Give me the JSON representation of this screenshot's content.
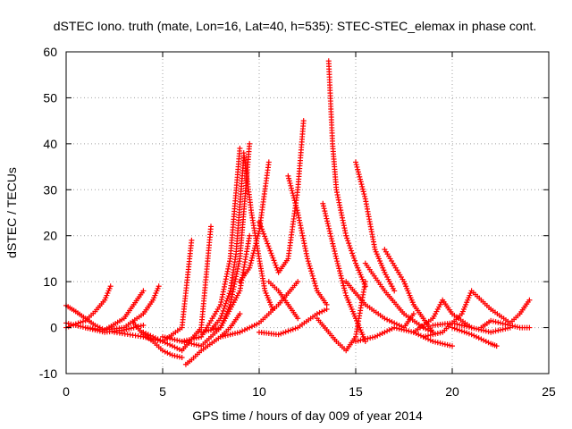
{
  "chart_data": {
    "type": "scatter",
    "title": "dSTEC Iono. truth (mate, Lon=16, Lat=40, h=535): STEC-STEC_elemax in phase cont.",
    "xlabel": "GPS time / hours of day 009 of year 2014",
    "ylabel": "dSTEC  / TECUs",
    "xlim": [
      0,
      25
    ],
    "ylim": [
      -10,
      60
    ],
    "xticks": [
      0,
      5,
      10,
      15,
      20,
      25
    ],
    "yticks": [
      -10,
      0,
      10,
      20,
      30,
      40,
      50,
      60
    ],
    "grid": true,
    "marker": "+",
    "colors": {
      "series": "#ff0000",
      "grid": "#a0a0a0",
      "axis": "#000000"
    },
    "arcs": [
      {
        "x": [
          0.0,
          0.5,
          1.0,
          1.5,
          2.0,
          2.3
        ],
        "y": [
          0.0,
          0.8,
          1.5,
          3.5,
          6.0,
          9.0
        ]
      },
      {
        "x": [
          0.0,
          0.5,
          1.0,
          1.5,
          2.0
        ],
        "y": [
          4.8,
          3.5,
          2.0,
          0.5,
          -0.5
        ]
      },
      {
        "x": [
          0.0,
          1.0,
          2.0,
          3.0,
          4.0
        ],
        "y": [
          1.0,
          0.0,
          -1.0,
          -0.5,
          0.5
        ]
      },
      {
        "x": [
          1.0,
          2.0,
          3.0,
          3.5,
          4.0
        ],
        "y": [
          0.0,
          -0.5,
          2.0,
          5.0,
          8.0
        ]
      },
      {
        "x": [
          2.0,
          3.0,
          4.0,
          4.5,
          4.8
        ],
        "y": [
          -0.5,
          0.0,
          3.0,
          6.0,
          9.0
        ]
      },
      {
        "x": [
          3.5,
          4.0,
          4.5,
          5.0,
          5.5,
          6.0
        ],
        "y": [
          1.0,
          -1.5,
          -3.0,
          -5.0,
          -6.0,
          -6.5
        ]
      },
      {
        "x": [
          2.5,
          4.0,
          5.0,
          6.0,
          6.5
        ],
        "y": [
          -1.0,
          -2.0,
          -3.0,
          0.0,
          19.0
        ]
      },
      {
        "x": [
          4.0,
          5.0,
          6.0,
          7.0,
          7.5
        ],
        "y": [
          -1.0,
          -3.0,
          -5.0,
          0.0,
          22.0
        ]
      },
      {
        "x": [
          6.2,
          6.5,
          7.0,
          8.0,
          8.5,
          9.0
        ],
        "y": [
          -8.0,
          -7.0,
          -5.0,
          -2.0,
          0.0,
          3.0
        ]
      },
      {
        "x": [
          5.0,
          6.0,
          7.0,
          8.0,
          9.0,
          9.5
        ],
        "y": [
          -2.0,
          -3.0,
          -4.0,
          0.0,
          8.0,
          20.0
        ]
      },
      {
        "x": [
          6.0,
          7.0,
          8.0,
          8.5,
          9.0
        ],
        "y": [
          -3.0,
          -2.0,
          5.0,
          15.0,
          39.0
        ]
      },
      {
        "x": [
          7.0,
          8.0,
          8.5,
          9.0,
          9.5
        ],
        "y": [
          -1.0,
          0.0,
          5.0,
          15.0,
          40.0
        ]
      },
      {
        "x": [
          7.5,
          8.0,
          8.5,
          8.8,
          9.2
        ],
        "y": [
          -0.5,
          2.0,
          8.0,
          16.0,
          37.0
        ]
      },
      {
        "x": [
          9.2,
          9.6,
          10.0,
          10.3,
          10.7
        ],
        "y": [
          38.0,
          25.0,
          15.0,
          8.0,
          4.0
        ]
      },
      {
        "x": [
          9.0,
          9.5,
          10.0,
          10.5
        ],
        "y": [
          10.0,
          13.0,
          21.0,
          36.0
        ]
      },
      {
        "x": [
          8.0,
          9.0,
          10.0,
          11.0,
          12.0
        ],
        "y": [
          -2.0,
          -1.0,
          1.0,
          5.0,
          10.0
        ]
      },
      {
        "x": [
          10.5,
          11.0,
          11.5,
          12.0
        ],
        "y": [
          10.0,
          8.0,
          5.0,
          2.0
        ]
      },
      {
        "x": [
          10.0,
          11.0,
          11.5,
          12.0,
          12.3
        ],
        "y": [
          23.0,
          12.0,
          15.0,
          30.0,
          45.0
        ]
      },
      {
        "x": [
          11.5,
          12.0,
          12.5,
          13.0,
          13.5
        ],
        "y": [
          33.0,
          25.0,
          15.0,
          8.0,
          5.0
        ]
      },
      {
        "x": [
          10.0,
          11.0,
          12.0,
          13.0,
          13.5
        ],
        "y": [
          -1.0,
          -1.5,
          0.0,
          3.0,
          4.0
        ]
      },
      {
        "x": [
          13.6,
          13.8,
          14.0,
          14.5,
          15.0,
          15.5
        ],
        "y": [
          58.0,
          40.0,
          30.0,
          20.0,
          14.0,
          9.0
        ]
      },
      {
        "x": [
          13.3,
          14.0,
          14.5,
          15.0,
          15.5
        ],
        "y": [
          27.0,
          15.0,
          7.0,
          2.0,
          -3.0
        ]
      },
      {
        "x": [
          13.0,
          14.0,
          14.5,
          15.0,
          15.5
        ],
        "y": [
          2.0,
          -3.0,
          -5.0,
          -2.0,
          10.0
        ]
      },
      {
        "x": [
          15.0,
          15.5,
          16.0,
          16.5,
          17.0
        ],
        "y": [
          36.0,
          28.0,
          17.0,
          12.0,
          8.0
        ]
      },
      {
        "x": [
          15.5,
          16.5,
          17.5,
          18.5,
          19.0
        ],
        "y": [
          14.0,
          8.0,
          3.0,
          0.0,
          -1.0
        ]
      },
      {
        "x": [
          16.5,
          17.5,
          18.0,
          18.5,
          19.0
        ],
        "y": [
          17.0,
          10.0,
          5.0,
          2.0,
          -1.0
        ]
      },
      {
        "x": [
          14.5,
          15.5,
          16.5,
          17.5,
          18.0
        ],
        "y": [
          10.0,
          5.0,
          2.0,
          0.0,
          3.0
        ]
      },
      {
        "x": [
          15.0,
          16.0,
          17.0,
          18.0,
          19.0,
          20.0
        ],
        "y": [
          -3.0,
          -2.0,
          0.0,
          -1.0,
          -3.0,
          -4.0
        ]
      },
      {
        "x": [
          18.0,
          19.0,
          19.5,
          20.0,
          21.0
        ],
        "y": [
          -1.0,
          2.0,
          6.0,
          3.0,
          0.0
        ]
      },
      {
        "x": [
          18.5,
          19.5,
          20.5,
          21.0,
          22.0
        ],
        "y": [
          -2.0,
          -1.0,
          3.0,
          8.0,
          4.0
        ]
      },
      {
        "x": [
          20.0,
          21.0,
          21.5,
          22.0,
          22.3
        ],
        "y": [
          0.0,
          -1.5,
          -2.5,
          -3.5,
          -4.0
        ]
      },
      {
        "x": [
          21.5,
          22.0,
          23.0,
          23.5,
          24.0
        ],
        "y": [
          0.0,
          1.5,
          0.5,
          0.0,
          0.0
        ]
      },
      {
        "x": [
          22.0,
          23.0,
          23.5,
          24.0
        ],
        "y": [
          4.0,
          1.0,
          3.0,
          6.0
        ]
      },
      {
        "x": [
          19.0,
          20.0,
          21.0,
          22.0,
          23.0
        ],
        "y": [
          0.5,
          1.0,
          0.0,
          -1.0,
          0.0
        ]
      }
    ]
  }
}
